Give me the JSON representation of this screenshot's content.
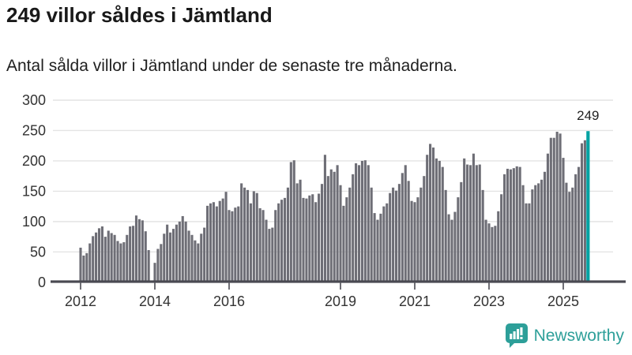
{
  "header": {
    "title": "249 villor såldes i Jämtland",
    "subtitle": "Antal sålda villor i Jämtland under de senaste tre månaderna."
  },
  "chart_data": {
    "type": "bar",
    "title": "249 villor såldes i Jämtland",
    "xlabel": "",
    "ylabel": "",
    "ylim": [
      0,
      300
    ],
    "grid": "horizontal",
    "legend": "none",
    "y_ticks": [
      0,
      50,
      100,
      150,
      200,
      250,
      300
    ],
    "x_ticks": [
      {
        "label": "2012",
        "month_index": 0
      },
      {
        "label": "2014",
        "month_index": 24
      },
      {
        "label": "2016",
        "month_index": 48
      },
      {
        "label": "2019",
        "month_index": 84
      },
      {
        "label": "2021",
        "month_index": 108
      },
      {
        "label": "2023",
        "month_index": 132
      },
      {
        "label": "2025",
        "month_index": 156
      }
    ],
    "values": [
      57,
      44,
      48,
      64,
      76,
      82,
      89,
      92,
      75,
      85,
      81,
      78,
      68,
      64,
      66,
      78,
      92,
      93,
      110,
      104,
      102,
      84,
      53,
      0,
      32,
      55,
      63,
      80,
      95,
      82,
      88,
      95,
      100,
      109,
      100,
      85,
      78,
      69,
      64,
      80,
      90,
      126,
      130,
      132,
      125,
      134,
      138,
      149,
      119,
      117,
      123,
      125,
      163,
      156,
      152,
      130,
      150,
      147,
      122,
      119,
      103,
      88,
      90,
      119,
      130,
      136,
      139,
      156,
      198,
      201,
      163,
      169,
      139,
      138,
      143,
      145,
      132,
      146,
      162,
      210,
      175,
      186,
      182,
      193,
      160,
      126,
      140,
      156,
      178,
      196,
      193,
      200,
      201,
      193,
      156,
      114,
      103,
      113,
      125,
      130,
      147,
      156,
      151,
      162,
      180,
      193,
      167,
      134,
      132,
      140,
      156,
      175,
      210,
      228,
      222,
      204,
      200,
      190,
      152,
      112,
      103,
      116,
      140,
      165,
      204,
      194,
      193,
      212,
      193,
      194,
      152,
      103,
      97,
      91,
      93,
      117,
      145,
      178,
      187,
      186,
      188,
      191,
      190,
      160,
      130,
      130,
      153,
      160,
      163,
      169,
      182,
      212,
      238,
      238,
      248,
      245,
      205,
      164,
      149,
      156,
      178,
      190,
      229,
      234,
      249
    ],
    "highlight": {
      "index": 164,
      "value": 249,
      "label": "249"
    },
    "colors": {
      "bar": "#6e6e76",
      "highlight": "#00a2a2",
      "gridline": "#e4e4e4",
      "axis": "#4a4a52",
      "tick_label": "#333333",
      "annotation": "#222222"
    }
  },
  "branding": {
    "name": "Newsworthy",
    "color": "#2d9f99"
  }
}
